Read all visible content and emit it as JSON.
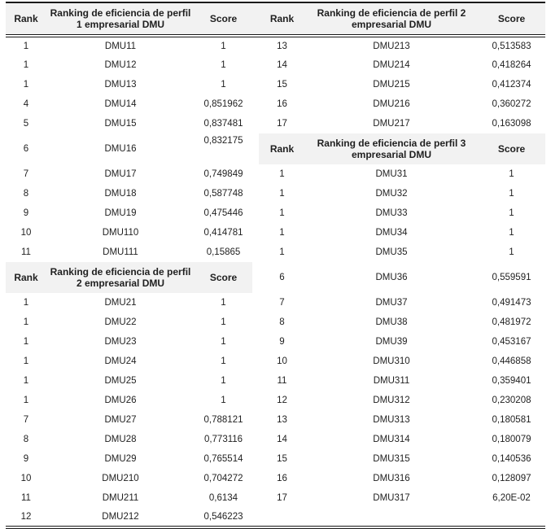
{
  "colors": {
    "header_bg": "#f2f2f2",
    "border": "#1a1a1a",
    "text": "#1f1f1f"
  },
  "table": {
    "header_labels": {
      "rank": "Rank",
      "score": "Score",
      "perfil1": "Ranking de eficiencia de perfil 1 empresarial DMU",
      "perfil2": "Ranking de eficiencia de perfil 2 empresarial DMU",
      "perfil3": "Ranking de eficiencia de perfil 3 empresarial DMU"
    },
    "rows": [
      {
        "left": {
          "type": "header",
          "rank": "Rank",
          "title": "Ranking de eficiencia de perfil 1 empresarial DMU",
          "score": "Score"
        },
        "right": {
          "type": "header",
          "rank": "Rank",
          "title": "Ranking de eficiencia de perfil 2 empresarial DMU",
          "score": "Score"
        }
      },
      {
        "left": {
          "type": "data",
          "rank": "1",
          "dmu": "DMU11",
          "score": "1"
        },
        "right": {
          "type": "data",
          "rank": "13",
          "dmu": "DMU213",
          "score": "0,513583"
        }
      },
      {
        "left": {
          "type": "data",
          "rank": "1",
          "dmu": "DMU12",
          "score": "1"
        },
        "right": {
          "type": "data",
          "rank": "14",
          "dmu": "DMU214",
          "score": "0,418264"
        }
      },
      {
        "left": {
          "type": "data",
          "rank": "1",
          "dmu": "DMU13",
          "score": "1"
        },
        "right": {
          "type": "data",
          "rank": "15",
          "dmu": "DMU215",
          "score": "0,412374"
        }
      },
      {
        "left": {
          "type": "data",
          "rank": "4",
          "dmu": "DMU14",
          "score": "0,851962"
        },
        "right": {
          "type": "data",
          "rank": "16",
          "dmu": "DMU216",
          "score": "0,360272"
        }
      },
      {
        "left": {
          "type": "data",
          "rank": "5",
          "dmu": "DMU15",
          "score": "0,837481"
        },
        "right": {
          "type": "data",
          "rank": "17",
          "dmu": "DMU217",
          "score": "0,163098"
        }
      },
      {
        "left": {
          "type": "data",
          "rank": "6",
          "dmu": "DMU16",
          "score": "0,832175",
          "score_align": "top"
        },
        "right": {
          "type": "header",
          "rank": "Rank",
          "title": "Ranking de eficiencia de perfil 3 empresarial DMU",
          "score": "Score"
        }
      },
      {
        "left": {
          "type": "data",
          "rank": "7",
          "dmu": "DMU17",
          "score": "0,749849"
        },
        "right": {
          "type": "data",
          "rank": "1",
          "dmu": "DMU31",
          "score": "1"
        }
      },
      {
        "left": {
          "type": "data",
          "rank": "8",
          "dmu": "DMU18",
          "score": "0,587748"
        },
        "right": {
          "type": "data",
          "rank": "1",
          "dmu": "DMU32",
          "score": "1"
        }
      },
      {
        "left": {
          "type": "data",
          "rank": "9",
          "dmu": "DMU19",
          "score": "0,475446"
        },
        "right": {
          "type": "data",
          "rank": "1",
          "dmu": "DMU33",
          "score": "1"
        }
      },
      {
        "left": {
          "type": "data",
          "rank": "10",
          "dmu": "DMU110",
          "score": "0,414781"
        },
        "right": {
          "type": "data",
          "rank": "1",
          "dmu": "DMU34",
          "score": "1"
        }
      },
      {
        "left": {
          "type": "data",
          "rank": "11",
          "dmu": "DMU111",
          "score": "0,15865"
        },
        "right": {
          "type": "data",
          "rank": "1",
          "dmu": "DMU35",
          "score": "1"
        }
      },
      {
        "left": {
          "type": "header",
          "rank": "Rank",
          "title": "Ranking de eficiencia de perfil 2 empresarial DMU",
          "score": "Score"
        },
        "right": {
          "type": "data",
          "rank": "6",
          "dmu": "DMU36",
          "score": "0,559591"
        }
      },
      {
        "left": {
          "type": "data",
          "rank": "1",
          "dmu": "DMU21",
          "score": "1"
        },
        "right": {
          "type": "data",
          "rank": "7",
          "dmu": "DMU37",
          "score": "0,491473"
        }
      },
      {
        "left": {
          "type": "data",
          "rank": "1",
          "dmu": "DMU22",
          "score": "1"
        },
        "right": {
          "type": "data",
          "rank": "8",
          "dmu": "DMU38",
          "score": "0,481972"
        }
      },
      {
        "left": {
          "type": "data",
          "rank": "1",
          "dmu": "DMU23",
          "score": "1"
        },
        "right": {
          "type": "data",
          "rank": "9",
          "dmu": "DMU39",
          "score": "0,453167"
        }
      },
      {
        "left": {
          "type": "data",
          "rank": "1",
          "dmu": "DMU24",
          "score": "1"
        },
        "right": {
          "type": "data",
          "rank": "10",
          "dmu": "DMU310",
          "score": "0,446858"
        }
      },
      {
        "left": {
          "type": "data",
          "rank": "1",
          "dmu": "DMU25",
          "score": "1"
        },
        "right": {
          "type": "data",
          "rank": "11",
          "dmu": "DMU311",
          "score": "0,359401"
        }
      },
      {
        "left": {
          "type": "data",
          "rank": "1",
          "dmu": "DMU26",
          "score": "1"
        },
        "right": {
          "type": "data",
          "rank": "12",
          "dmu": "DMU312",
          "score": "0,230208"
        }
      },
      {
        "left": {
          "type": "data",
          "rank": "7",
          "dmu": "DMU27",
          "score": "0,788121"
        },
        "right": {
          "type": "data",
          "rank": "13",
          "dmu": "DMU313",
          "score": "0,180581"
        }
      },
      {
        "left": {
          "type": "data",
          "rank": "8",
          "dmu": "DMU28",
          "score": "0,773116"
        },
        "right": {
          "type": "data",
          "rank": "14",
          "dmu": "DMU314",
          "score": "0,180079"
        }
      },
      {
        "left": {
          "type": "data",
          "rank": "9",
          "dmu": "DMU29",
          "score": "0,765514"
        },
        "right": {
          "type": "data",
          "rank": "15",
          "dmu": "DMU315",
          "score": "0,140536"
        }
      },
      {
        "left": {
          "type": "data",
          "rank": "10",
          "dmu": "DMU210",
          "score": "0,704272"
        },
        "right": {
          "type": "data",
          "rank": "16",
          "dmu": "DMU316",
          "score": "0,128097"
        }
      },
      {
        "left": {
          "type": "data",
          "rank": "11",
          "dmu": "DMU211",
          "score": "0,6134"
        },
        "right": {
          "type": "data",
          "rank": "17",
          "dmu": "DMU317",
          "score": "6,20E-02"
        }
      },
      {
        "left": {
          "type": "data",
          "rank": "12",
          "dmu": "DMU212",
          "score": "0,546223"
        },
        "right": {
          "type": "empty"
        }
      }
    ]
  }
}
